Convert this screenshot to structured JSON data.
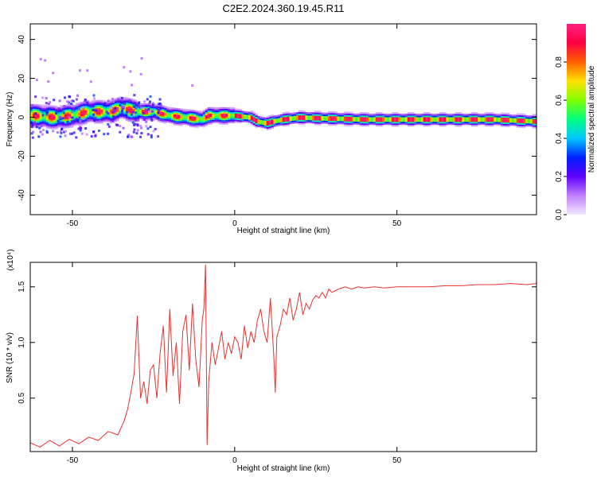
{
  "chart_data": [
    {
      "type": "heatmap",
      "title": "C2E2.2024.360.19.45.R11",
      "xlabel": "Height of straight line (km)",
      "ylabel": "Frequency (Hz)",
      "xlim": [
        -63,
        93
      ],
      "ylim": [
        -50,
        48
      ],
      "x_ticks": [
        -50,
        0,
        50
      ],
      "y_ticks": [
        -40,
        -20,
        0,
        20,
        40
      ],
      "colorbar": {
        "label": "Normalized spectral amplitude",
        "range": [
          0.0,
          1.0
        ],
        "ticks": [
          0.0,
          0.2,
          0.4,
          0.6,
          0.8
        ],
        "tick_labels": [
          "0.0",
          "0.2",
          "0.4",
          "0.6",
          "0.8"
        ],
        "colormap": [
          "#f0e0ff",
          "#c080ff",
          "#6000ff",
          "#0020ff",
          "#00c8ff",
          "#00ff80",
          "#80ff00",
          "#ffe000",
          "#ff6000",
          "#ff0040",
          "#ff2080"
        ]
      },
      "ridge": [
        {
          "x": -62,
          "f": 1
        },
        {
          "x": -55,
          "f": 0
        },
        {
          "x": -50,
          "f": 1
        },
        {
          "x": -45,
          "f": 3
        },
        {
          "x": -38,
          "f": 3
        },
        {
          "x": -35,
          "f": 5
        },
        {
          "x": -30,
          "f": 3
        },
        {
          "x": -25,
          "f": 3
        },
        {
          "x": -20,
          "f": 1
        },
        {
          "x": -15,
          "f": 0
        },
        {
          "x": -10,
          "f": -1
        },
        {
          "x": -8,
          "f": 1
        },
        {
          "x": 0,
          "f": 1
        },
        {
          "x": 5,
          "f": 0
        },
        {
          "x": 7,
          "f": -2
        },
        {
          "x": 10,
          "f": -3
        },
        {
          "x": 12,
          "f": -2
        },
        {
          "x": 15,
          "f": -1
        },
        {
          "x": 20,
          "f": 0
        },
        {
          "x": 40,
          "f": -1
        },
        {
          "x": 60,
          "f": -1
        },
        {
          "x": 80,
          "f": -1
        },
        {
          "x": 93,
          "f": -2
        }
      ]
    },
    {
      "type": "line",
      "xlabel": "Height of straight line (km)",
      "ylabel": "SNR (10 * v/v)",
      "multiplier": "(x10⁴)",
      "xlim": [
        -63,
        93
      ],
      "ylim": [
        0.02,
        1.72
      ],
      "x_ticks": [
        -50,
        0,
        50
      ],
      "y_ticks": [
        0.5,
        1.0,
        1.5
      ],
      "y_tick_labels": [
        "0.5",
        "1.0",
        "1.5"
      ],
      "color": "#e83030",
      "series": [
        {
          "x": [
            -63,
            -60,
            -57,
            -54,
            -51,
            -48,
            -45,
            -42,
            -39,
            -36,
            -34,
            -33,
            -32,
            -31,
            -30,
            -29,
            -28,
            -27,
            -26,
            -25,
            -24,
            -23,
            -22,
            -21,
            -20,
            -19,
            -18,
            -17,
            -16,
            -15,
            -14,
            -13,
            -12,
            -11,
            -10,
            -9.5,
            -9,
            -8.5,
            -8,
            -7,
            -6,
            -5,
            -4,
            -3,
            -2,
            -1,
            0,
            1,
            2,
            3,
            4,
            5,
            6,
            7,
            8,
            9,
            10,
            11,
            12,
            12.5,
            13,
            14,
            15,
            16,
            17,
            18,
            19,
            20,
            21,
            22,
            23,
            24,
            25,
            26,
            27,
            28,
            29,
            30,
            32,
            34,
            36,
            38,
            40,
            43,
            46,
            50,
            55,
            60,
            65,
            70,
            75,
            80,
            85,
            90,
            93
          ],
          "y": [
            0.1,
            0.06,
            0.12,
            0.07,
            0.13,
            0.09,
            0.15,
            0.12,
            0.2,
            0.17,
            0.3,
            0.4,
            0.55,
            0.72,
            1.24,
            0.5,
            0.65,
            0.45,
            0.75,
            0.8,
            0.5,
            0.9,
            1.15,
            0.55,
            1.3,
            0.7,
            1.0,
            0.45,
            1.1,
            1.25,
            0.75,
            1.35,
            0.85,
            0.6,
            1.2,
            1.3,
            1.7,
            0.08,
            0.65,
            1.0,
            0.8,
            0.95,
            1.1,
            0.85,
            1.0,
            0.9,
            1.05,
            1.0,
            0.85,
            1.15,
            0.95,
            1.1,
            1.0,
            1.2,
            1.3,
            1.1,
            1.0,
            1.4,
            0.9,
            0.55,
            1.05,
            1.15,
            1.3,
            1.25,
            1.4,
            1.2,
            1.3,
            1.45,
            1.25,
            1.35,
            1.3,
            1.38,
            1.42,
            1.4,
            1.45,
            1.4,
            1.48,
            1.45,
            1.48,
            1.5,
            1.48,
            1.5,
            1.49,
            1.5,
            1.49,
            1.5,
            1.5,
            1.5,
            1.51,
            1.51,
            1.52,
            1.52,
            1.53,
            1.52,
            1.53
          ]
        }
      ]
    }
  ]
}
